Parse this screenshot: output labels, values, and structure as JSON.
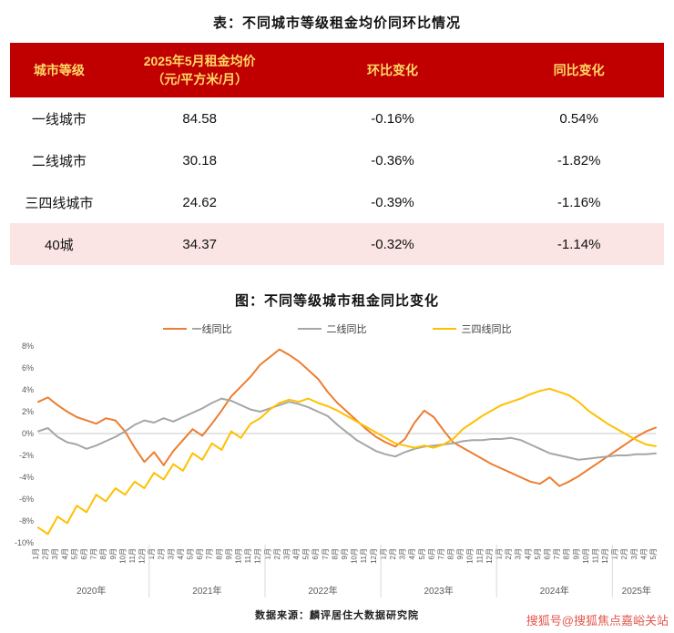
{
  "page": {
    "table_title": "表：不同城市等级租金均价同环比情况",
    "chart_title": "图：不同等级城市租金同比变化",
    "source": "数据来源：麟评居住大数据研究院",
    "watermark": "搜狐号@搜狐焦点嘉峪关站"
  },
  "table": {
    "headers": [
      "城市等级",
      "2025年5月租金均价\n（元/平方米/月）",
      "环比变化",
      "同比变化"
    ],
    "rows": [
      {
        "tier": "一线城市",
        "price": "84.58",
        "mom": "-0.16%",
        "yoy": "0.54%"
      },
      {
        "tier": "二线城市",
        "price": "30.18",
        "mom": "-0.36%",
        "yoy": "-1.82%"
      },
      {
        "tier": "三四线城市",
        "price": "24.62",
        "mom": "-0.39%",
        "yoy": "-1.16%"
      },
      {
        "tier": "40城",
        "price": "34.37",
        "mom": "-0.32%",
        "yoy": "-1.14%"
      }
    ],
    "colors": {
      "header_bg": "#c00000",
      "header_text": "#ffd966",
      "highlight_row_bg": "#fbe5e4"
    }
  },
  "chart_data": {
    "type": "line",
    "title": "图：不同等级城市租金同比变化",
    "xlabel": "",
    "ylabel": "",
    "ylim": [
      -10,
      8
    ],
    "y_ticks": [
      8,
      6,
      4,
      2,
      0,
      -2,
      -4,
      -6,
      -8,
      -10
    ],
    "y_tick_suffix": "%",
    "grid": "zero-line-only",
    "legend_position": "top",
    "x_tick_labels": [
      "1月",
      "2月",
      "3月",
      "4月",
      "5月",
      "6月",
      "7月",
      "8月",
      "9月",
      "10月",
      "11月",
      "12月",
      "1月",
      "2月",
      "3月",
      "4月",
      "5月",
      "6月",
      "7月",
      "8月",
      "9月",
      "10月",
      "11月",
      "12月",
      "1月",
      "2月",
      "3月",
      "4月",
      "5月",
      "6月",
      "7月",
      "8月",
      "9月",
      "10月",
      "11月",
      "12月",
      "1月",
      "2月",
      "3月",
      "4月",
      "5月",
      "6月",
      "7月",
      "8月",
      "9月",
      "10月",
      "11月",
      "12月",
      "1月",
      "2月",
      "3月",
      "4月",
      "5月",
      "6月",
      "7月",
      "8月",
      "9月",
      "10月",
      "11月",
      "12月",
      "1月",
      "2月",
      "3月",
      "4月",
      "5月"
    ],
    "year_groups": [
      {
        "label": "2020年",
        "months": 12
      },
      {
        "label": "2021年",
        "months": 12
      },
      {
        "label": "2022年",
        "months": 12
      },
      {
        "label": "2023年",
        "months": 12
      },
      {
        "label": "2024年",
        "months": 12
      },
      {
        "label": "2025年",
        "months": 5
      }
    ],
    "series": [
      {
        "name": "一线同比",
        "color": "#ed7d31",
        "values": [
          2.9,
          3.3,
          2.6,
          2.0,
          1.5,
          1.2,
          0.9,
          1.4,
          1.2,
          0.2,
          -1.3,
          -2.6,
          -1.7,
          -2.9,
          -1.6,
          -0.6,
          0.4,
          -0.2,
          0.9,
          2.1,
          3.4,
          4.3,
          5.2,
          6.3,
          7.0,
          7.7,
          7.2,
          6.6,
          5.8,
          5.0,
          3.8,
          2.8,
          2.0,
          1.2,
          0.4,
          -0.3,
          -0.8,
          -1.2,
          -0.5,
          1.0,
          2.1,
          1.5,
          0.3,
          -0.8,
          -1.3,
          -1.8,
          -2.3,
          -2.8,
          -3.2,
          -3.6,
          -4.0,
          -4.4,
          -4.6,
          -4.0,
          -4.8,
          -4.4,
          -3.9,
          -3.3,
          -2.7,
          -2.1,
          -1.5,
          -0.9,
          -0.3,
          0.2,
          0.54
        ]
      },
      {
        "name": "二线同比",
        "color": "#a6a6a6",
        "values": [
          0.2,
          0.5,
          -0.3,
          -0.8,
          -1.0,
          -1.4,
          -1.1,
          -0.7,
          -0.3,
          0.2,
          0.8,
          1.2,
          1.0,
          1.4,
          1.1,
          1.5,
          1.9,
          2.3,
          2.8,
          3.2,
          3.0,
          2.6,
          2.2,
          2.0,
          2.3,
          2.6,
          2.9,
          2.7,
          2.4,
          2.0,
          1.6,
          0.8,
          0.1,
          -0.6,
          -1.1,
          -1.6,
          -1.9,
          -2.1,
          -1.7,
          -1.4,
          -1.2,
          -1.1,
          -1.0,
          -0.9,
          -0.7,
          -0.6,
          -0.6,
          -0.5,
          -0.5,
          -0.4,
          -0.6,
          -1.0,
          -1.4,
          -1.8,
          -2.0,
          -2.2,
          -2.4,
          -2.3,
          -2.2,
          -2.1,
          -2.0,
          -2.0,
          -1.9,
          -1.9,
          -1.82
        ]
      },
      {
        "name": "三四线同比",
        "color": "#ffc000",
        "values": [
          -8.6,
          -9.2,
          -7.6,
          -8.2,
          -6.6,
          -7.2,
          -5.6,
          -6.2,
          -5.0,
          -5.6,
          -4.4,
          -5.0,
          -3.6,
          -4.2,
          -2.8,
          -3.4,
          -1.8,
          -2.4,
          -0.9,
          -1.5,
          0.2,
          -0.4,
          0.9,
          1.4,
          2.2,
          2.8,
          3.1,
          2.9,
          3.2,
          2.8,
          2.5,
          2.1,
          1.6,
          1.1,
          0.6,
          0.1,
          -0.4,
          -0.9,
          -1.1,
          -1.3,
          -1.1,
          -1.3,
          -1.0,
          -0.5,
          0.4,
          1.0,
          1.6,
          2.1,
          2.6,
          2.9,
          3.2,
          3.6,
          3.9,
          4.1,
          3.8,
          3.5,
          2.9,
          2.1,
          1.5,
          0.9,
          0.4,
          -0.1,
          -0.6,
          -1.0,
          -1.16
        ]
      }
    ]
  }
}
